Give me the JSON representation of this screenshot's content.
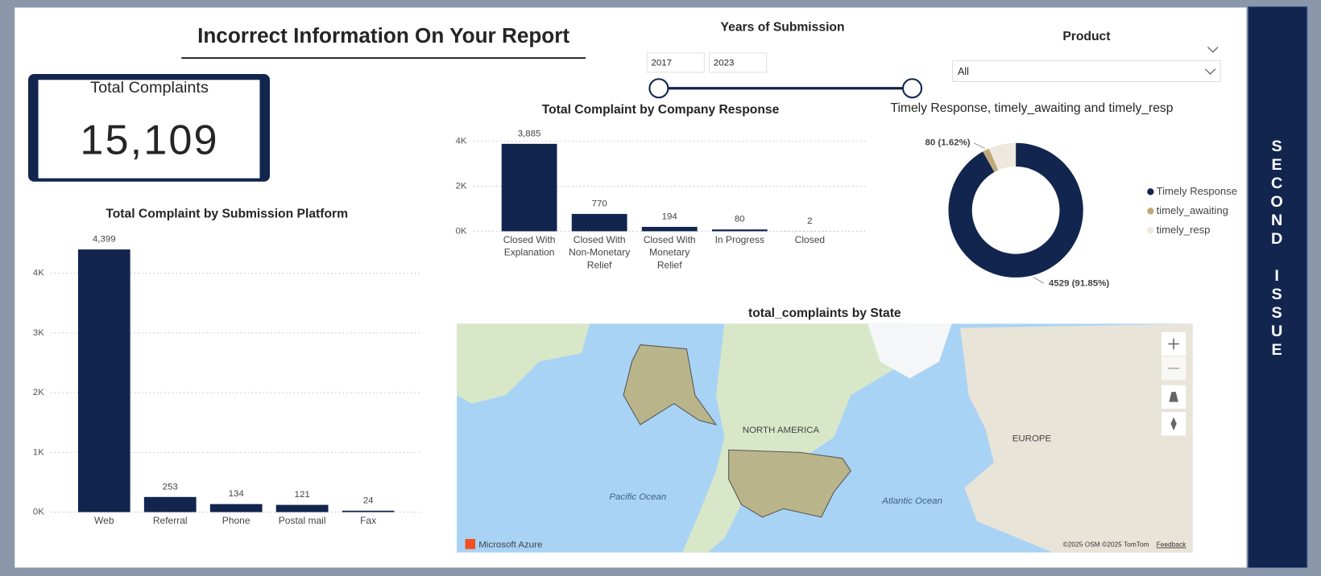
{
  "header": {
    "title": "Incorrect Information On Your Report"
  },
  "kpi": {
    "label": "Total Complaints",
    "value": "15,109"
  },
  "slicers": {
    "years": {
      "title": "Years of Submission",
      "start": "2017",
      "end": "2023"
    },
    "product": {
      "title": "Product",
      "value": "All"
    }
  },
  "side_banner": "SECOND ISSUE",
  "map": {
    "title": "total_complaints by State",
    "labels": [
      "NORTH AMERICA",
      "EUROPE",
      "Pacific Ocean",
      "Atlantic Ocean"
    ],
    "attribution": "Microsoft Azure",
    "copyright": "©2025 OSM  ©2025 TomTom",
    "feedback": "Feedback"
  },
  "chart_data": [
    {
      "type": "bar",
      "title": "Total Complaint by Submission Platform",
      "categories": [
        "Web",
        "Referral",
        "Phone",
        "Postal mail",
        "Fax"
      ],
      "values": [
        4399,
        253,
        134,
        121,
        24
      ],
      "value_labels": [
        "4,399",
        "253",
        "134",
        "121",
        "24"
      ],
      "color": "#12254f",
      "ylim": [
        0,
        4500
      ],
      "yticks": [
        {
          "value": 0,
          "label": "0K"
        },
        {
          "value": 1000,
          "label": "1K"
        },
        {
          "value": 2000,
          "label": "2K"
        },
        {
          "value": 3000,
          "label": "3K"
        },
        {
          "value": 4000,
          "label": "4K"
        }
      ],
      "grid": true
    },
    {
      "type": "bar",
      "title": "Total Complaint by Company Response",
      "categories": [
        "Closed With Explanation",
        "Closed With Non-Monetary Relief",
        "Closed With Monetary Relief",
        "In Progress",
        "Closed"
      ],
      "values": [
        3885,
        770,
        194,
        80,
        2
      ],
      "value_labels": [
        "3,885",
        "770",
        "194",
        "80",
        "2"
      ],
      "color": "#12254f",
      "ylim": [
        0,
        4000
      ],
      "yticks": [
        {
          "value": 0,
          "label": "0K"
        },
        {
          "value": 2000,
          "label": "2K"
        },
        {
          "value": 4000,
          "label": "4K"
        }
      ],
      "grid": true
    },
    {
      "type": "pie",
      "title": "Timely Response, timely_awaiting and timely_resp",
      "donut": true,
      "categories": [
        "Timely Response",
        "timely_awaiting",
        "timely_resp"
      ],
      "values": [
        4529,
        80,
        322
      ],
      "value_labels": [
        "4529 (91.85%)",
        "80 (1.62%)",
        null
      ],
      "colors": [
        "#12254f",
        "#bfa97a",
        "#eee8de"
      ]
    }
  ]
}
